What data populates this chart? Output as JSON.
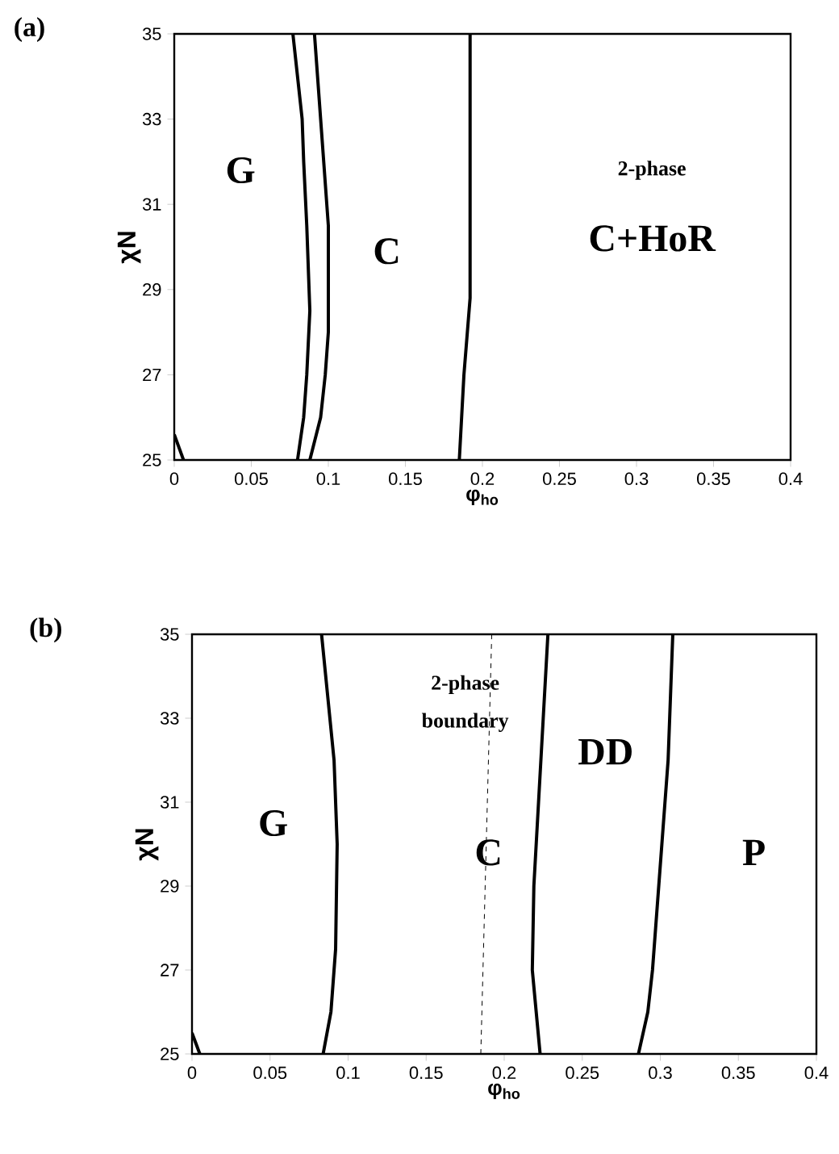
{
  "chart_data": [
    {
      "type": "line",
      "title": "(a)",
      "xlabel": "φ$_{ho}$",
      "ylabel": "χN",
      "xlim": [
        0,
        0.4
      ],
      "ylim": [
        25,
        35
      ],
      "xticks": [
        0,
        0.05,
        0.1,
        0.15,
        0.2,
        0.25,
        0.3,
        0.35,
        0.4
      ],
      "yticks": [
        25,
        27,
        29,
        31,
        33,
        35
      ],
      "grid": false,
      "marker": "none",
      "series": [
        {
          "color": "#000000",
          "x": [
            0,
            0.006
          ],
          "values": [
            25.6,
            25
          ]
        },
        {
          "color": "#000000",
          "x": [
            0.08,
            0.084,
            0.086,
            0.088,
            0.086,
            0.084,
            0.083,
            0.077
          ],
          "values": [
            25,
            26,
            27,
            28.5,
            30.5,
            32,
            33,
            35
          ]
        },
        {
          "color": "#000000",
          "x": [
            0.088,
            0.095,
            0.098,
            0.1,
            0.1,
            0.095,
            0.091
          ],
          "values": [
            25,
            26,
            27,
            28,
            30.5,
            33,
            35
          ]
        },
        {
          "color": "#000000",
          "x": [
            0.185,
            0.188,
            0.192,
            0.192
          ],
          "values": [
            25,
            27,
            28.8,
            35
          ]
        }
      ],
      "annotations": [
        "G",
        "C",
        "2-phase",
        "C+HoR"
      ]
    },
    {
      "type": "line",
      "title": "(b)",
      "xlabel": "φ$_{ho}$",
      "ylabel": "χN",
      "xlim": [
        0,
        0.4
      ],
      "ylim": [
        25,
        35
      ],
      "xticks": [
        0,
        0.05,
        0.1,
        0.15,
        0.2,
        0.25,
        0.3,
        0.35,
        0.4
      ],
      "yticks": [
        25,
        27,
        29,
        31,
        33,
        35
      ],
      "grid": false,
      "marker": "none",
      "series": [
        {
          "color": "#000000",
          "x": [
            0,
            0.005
          ],
          "values": [
            25.5,
            25
          ]
        },
        {
          "color": "#000000",
          "x": [
            0.084,
            0.089,
            0.092,
            0.093,
            0.091,
            0.083
          ],
          "values": [
            25,
            26,
            27.5,
            30,
            32,
            35
          ]
        },
        {
          "color": "#000000",
          "line_style": "dashed",
          "x": [
            0.185,
            0.192
          ],
          "values": [
            25,
            35
          ]
        },
        {
          "color": "#000000",
          "x": [
            0.223,
            0.218,
            0.219,
            0.222,
            0.225,
            0.228
          ],
          "values": [
            25,
            27,
            29,
            31,
            33,
            35
          ]
        },
        {
          "color": "#000000",
          "x": [
            0.286,
            0.292,
            0.295,
            0.297,
            0.301,
            0.305,
            0.308
          ],
          "values": [
            25,
            26,
            27,
            28,
            30,
            32,
            35
          ]
        }
      ],
      "annotations": [
        "G",
        "C",
        "DD",
        "P",
        "2-phase",
        "boundary"
      ]
    }
  ]
}
